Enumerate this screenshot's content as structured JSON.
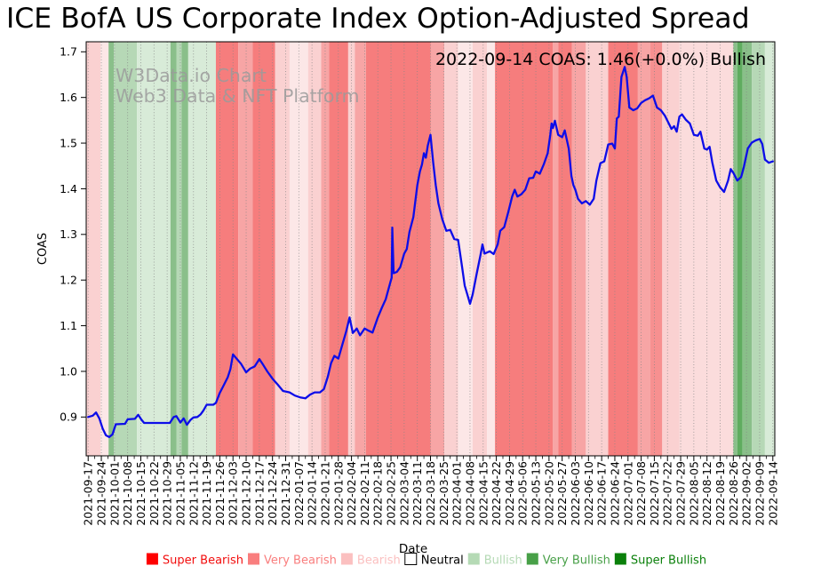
{
  "title": "ICE BofA US Corporate Index Option-Adjusted Spread",
  "annotation": "2022-09-14 COAS: 1.46(+0.0%) Bullish",
  "watermark": {
    "line1": "W3Data.io Chart",
    "line2": "Web3 Data & NFT Platform"
  },
  "chart_data": {
    "type": "line",
    "title": "ICE BofA US Corporate Index Option-Adjusted Spread",
    "xlabel": "Date",
    "ylabel": "COAS",
    "ylim": [
      0.815,
      1.722
    ],
    "xlim_weeks": [
      -0.15,
      52.15
    ],
    "grid": "vertical-dotted-weekly",
    "yticks": [
      "0.9",
      "1.0",
      "1.1",
      "1.2",
      "1.3",
      "1.4",
      "1.5",
      "1.6",
      "1.7"
    ],
    "ytick_values": [
      0.9,
      1.0,
      1.1,
      1.2,
      1.3,
      1.4,
      1.5,
      1.6,
      1.7
    ],
    "x_tick_labels": [
      "2021-09-17",
      "2021-09-24",
      "2021-10-01",
      "2021-10-08",
      "2021-10-15",
      "2021-10-22",
      "2021-10-29",
      "2021-11-05",
      "2021-11-12",
      "2021-11-19",
      "2021-11-26",
      "2021-12-03",
      "2021-12-10",
      "2021-12-17",
      "2021-12-24",
      "2021-12-31",
      "2022-01-07",
      "2022-01-14",
      "2022-01-21",
      "2022-01-28",
      "2022-02-04",
      "2022-02-11",
      "2022-02-18",
      "2022-02-25",
      "2022-03-04",
      "2022-03-11",
      "2022-03-18",
      "2022-03-25",
      "2022-04-01",
      "2022-04-08",
      "2022-04-15",
      "2022-04-22",
      "2022-04-29",
      "2022-05-06",
      "2022-05-13",
      "2022-05-20",
      "2022-05-27",
      "2022-06-03",
      "2022-06-10",
      "2022-06-17",
      "2022-06-24",
      "2022-07-01",
      "2022-07-08",
      "2022-07-15",
      "2022-07-22",
      "2022-07-29",
      "2022-08-05",
      "2022-08-12",
      "2022-08-19",
      "2022-08-26",
      "2022-09-02",
      "2022-09-09",
      "2022-09-14"
    ],
    "series": [
      {
        "name": "COAS",
        "color": "#0d0de8",
        "x": [
          0,
          0.35,
          0.6,
          0.85,
          1.1,
          1.35,
          1.6,
          1.85,
          2.1,
          2.8,
          3.0,
          3.55,
          3.8,
          4.05,
          4.25,
          6.2,
          6.5,
          6.7,
          7.0,
          7.25,
          7.5,
          7.75,
          8.0,
          8.3,
          8.55,
          8.75,
          9.0,
          9.5,
          9.7,
          10.0,
          10.3,
          10.6,
          10.8,
          11.0,
          11.3,
          11.6,
          12.0,
          12.3,
          12.65,
          13.0,
          13.3,
          13.6,
          14.0,
          14.4,
          14.8,
          15.3,
          15.7,
          16.1,
          16.5,
          16.85,
          17.2,
          17.6,
          17.9,
          18.2,
          18.45,
          18.7,
          19.0,
          19.3,
          19.6,
          19.85,
          20.1,
          20.4,
          20.65,
          21.0,
          21.3,
          21.6,
          22.0,
          22.3,
          22.6,
          22.95,
          23.05,
          23.1,
          23.2,
          23.45,
          23.7,
          24.0,
          24.2,
          24.4,
          24.7,
          25.0,
          25.2,
          25.35,
          25.5,
          25.65,
          25.8,
          26.0,
          26.2,
          26.4,
          26.6,
          26.9,
          27.2,
          27.5,
          27.8,
          28.1,
          28.4,
          28.6,
          28.8,
          29.0,
          29.2,
          29.5,
          29.8,
          29.95,
          30.1,
          30.5,
          30.8,
          31.1,
          31.3,
          31.6,
          31.9,
          32.2,
          32.4,
          32.6,
          32.9,
          33.2,
          33.5,
          33.8,
          34.0,
          34.3,
          34.6,
          34.9,
          35.1,
          35.2,
          35.3,
          35.45,
          35.7,
          36.0,
          36.2,
          36.5,
          36.7,
          36.85,
          37.0,
          37.2,
          37.5,
          37.8,
          38.1,
          38.4,
          38.6,
          38.9,
          39.2,
          39.5,
          39.8,
          40.0,
          40.15,
          40.3,
          40.5,
          40.65,
          40.75,
          40.9,
          41.1,
          41.4,
          41.7,
          42.0,
          42.3,
          42.6,
          42.9,
          43.2,
          43.5,
          43.8,
          44.1,
          44.3,
          44.5,
          44.7,
          44.9,
          45.1,
          45.4,
          45.7,
          46.0,
          46.3,
          46.5,
          46.8,
          47.0,
          47.2,
          47.4,
          47.7,
          48.0,
          48.3,
          48.6,
          48.8,
          49.0,
          49.3,
          49.6,
          49.8,
          50.1,
          50.4,
          50.7,
          51.0,
          51.2,
          51.4,
          51.7,
          52.0
        ],
        "y": [
          0.9,
          0.903,
          0.91,
          0.897,
          0.875,
          0.86,
          0.856,
          0.862,
          0.884,
          0.885,
          0.895,
          0.896,
          0.905,
          0.894,
          0.887,
          0.887,
          0.9,
          0.902,
          0.888,
          0.897,
          0.883,
          0.893,
          0.899,
          0.9,
          0.906,
          0.914,
          0.927,
          0.927,
          0.931,
          0.953,
          0.97,
          0.987,
          1.005,
          1.037,
          1.027,
          1.017,
          0.998,
          1.006,
          1.011,
          1.027,
          1.014,
          1.0,
          0.984,
          0.971,
          0.957,
          0.954,
          0.947,
          0.943,
          0.941,
          0.949,
          0.954,
          0.954,
          0.961,
          0.988,
          1.018,
          1.034,
          1.028,
          1.058,
          1.088,
          1.118,
          1.084,
          1.094,
          1.079,
          1.094,
          1.089,
          1.085,
          1.118,
          1.139,
          1.158,
          1.195,
          1.205,
          1.315,
          1.215,
          1.218,
          1.228,
          1.258,
          1.268,
          1.305,
          1.338,
          1.408,
          1.438,
          1.453,
          1.478,
          1.468,
          1.495,
          1.518,
          1.458,
          1.408,
          1.368,
          1.333,
          1.308,
          1.31,
          1.29,
          1.288,
          1.228,
          1.188,
          1.168,
          1.148,
          1.168,
          1.213,
          1.255,
          1.278,
          1.258,
          1.263,
          1.257,
          1.278,
          1.308,
          1.316,
          1.348,
          1.383,
          1.398,
          1.383,
          1.388,
          1.398,
          1.423,
          1.424,
          1.438,
          1.433,
          1.453,
          1.478,
          1.518,
          1.543,
          1.533,
          1.549,
          1.518,
          1.513,
          1.528,
          1.488,
          1.428,
          1.408,
          1.398,
          1.378,
          1.368,
          1.373,
          1.365,
          1.378,
          1.418,
          1.456,
          1.46,
          1.497,
          1.499,
          1.488,
          1.554,
          1.558,
          1.645,
          1.658,
          1.667,
          1.645,
          1.578,
          1.572,
          1.576,
          1.588,
          1.594,
          1.598,
          1.604,
          1.578,
          1.572,
          1.56,
          1.543,
          1.531,
          1.537,
          1.525,
          1.558,
          1.563,
          1.551,
          1.543,
          1.518,
          1.516,
          1.525,
          1.488,
          1.486,
          1.492,
          1.458,
          1.418,
          1.403,
          1.393,
          1.418,
          1.443,
          1.435,
          1.418,
          1.426,
          1.448,
          1.488,
          1.501,
          1.506,
          1.509,
          1.498,
          1.464,
          1.457,
          1.46
        ]
      }
    ],
    "band_colors": {
      "salmon": "#f67d7d",
      "salmon_light": "#f79090",
      "med_pink": "#f7a5a5",
      "light_pink": "#fad1d1",
      "pale_pink": "#fce7e7",
      "pale_pink2": "#fbdcdc",
      "pale_green": "#d8ebd8",
      "light_green": "#b6d8b6",
      "med_green": "#8abf8a",
      "dark_green": "#5fac5f"
    },
    "bands": [
      {
        "from": -0.15,
        "to": 0.95,
        "c": "light_pink"
      },
      {
        "from": 0.95,
        "to": 1.55,
        "c": "pale_pink"
      },
      {
        "from": 1.55,
        "to": 1.95,
        "c": "med_green"
      },
      {
        "from": 1.95,
        "to": 3.7,
        "c": "light_green"
      },
      {
        "from": 3.7,
        "to": 6.25,
        "c": "pale_green"
      },
      {
        "from": 6.25,
        "to": 6.7,
        "c": "med_green"
      },
      {
        "from": 6.7,
        "to": 7.1,
        "c": "light_green"
      },
      {
        "from": 7.1,
        "to": 7.6,
        "c": "med_green"
      },
      {
        "from": 7.6,
        "to": 9.7,
        "c": "pale_green"
      },
      {
        "from": 9.7,
        "to": 11.4,
        "c": "salmon"
      },
      {
        "from": 11.4,
        "to": 12.5,
        "c": "med_pink"
      },
      {
        "from": 12.5,
        "to": 14.2,
        "c": "salmon"
      },
      {
        "from": 14.2,
        "to": 15.3,
        "c": "light_pink"
      },
      {
        "from": 15.3,
        "to": 16.7,
        "c": "pale_pink"
      },
      {
        "from": 16.7,
        "to": 17.7,
        "c": "light_pink"
      },
      {
        "from": 17.7,
        "to": 18.3,
        "c": "med_pink"
      },
      {
        "from": 18.3,
        "to": 19.75,
        "c": "salmon"
      },
      {
        "from": 19.75,
        "to": 20.25,
        "c": "light_pink"
      },
      {
        "from": 20.25,
        "to": 21.1,
        "c": "med_pink"
      },
      {
        "from": 21.1,
        "to": 26.0,
        "c": "salmon"
      },
      {
        "from": 26.0,
        "to": 27.05,
        "c": "med_pink"
      },
      {
        "from": 27.05,
        "to": 28.1,
        "c": "light_pink"
      },
      {
        "from": 28.1,
        "to": 29.2,
        "c": "pale_pink"
      },
      {
        "from": 29.2,
        "to": 30.3,
        "c": "light_pink"
      },
      {
        "from": 30.3,
        "to": 30.9,
        "c": "pale_pink"
      },
      {
        "from": 30.9,
        "to": 35.3,
        "c": "salmon"
      },
      {
        "from": 35.3,
        "to": 35.7,
        "c": "med_pink"
      },
      {
        "from": 35.7,
        "to": 36.75,
        "c": "salmon"
      },
      {
        "from": 36.75,
        "to": 37.8,
        "c": "med_pink"
      },
      {
        "from": 37.8,
        "to": 39.5,
        "c": "light_pink"
      },
      {
        "from": 39.5,
        "to": 41.75,
        "c": "salmon"
      },
      {
        "from": 41.75,
        "to": 42.7,
        "c": "med_pink"
      },
      {
        "from": 42.7,
        "to": 43.6,
        "c": "salmon_light"
      },
      {
        "from": 43.6,
        "to": 44.9,
        "c": "light_pink"
      },
      {
        "from": 44.9,
        "to": 49.0,
        "c": "pale_pink2"
      },
      {
        "from": 49.0,
        "to": 49.3,
        "c": "med_green"
      },
      {
        "from": 49.3,
        "to": 49.7,
        "c": "dark_green"
      },
      {
        "from": 49.7,
        "to": 50.4,
        "c": "med_green"
      },
      {
        "from": 50.4,
        "to": 51.4,
        "c": "light_green"
      },
      {
        "from": 51.4,
        "to": 52.15,
        "c": "pale_green"
      }
    ],
    "legend": {
      "position": "bottom-center",
      "items": [
        {
          "label": "Super Bearish",
          "swatch": "#fe0000",
          "text_color": "#f20d0d"
        },
        {
          "label": "Very Bearish",
          "swatch": "#f97e7e",
          "text_color": "#f97e7e"
        },
        {
          "label": "Bearish",
          "swatch": "#fbc0c0",
          "text_color": "#fbc0c0"
        },
        {
          "label": "Neutral",
          "swatch": "#ffffff",
          "text_color": "#000000",
          "border": "#000000"
        },
        {
          "label": "Bullish",
          "swatch": "#b5dab5",
          "text_color": "#b5dab5"
        },
        {
          "label": "Very Bullish",
          "swatch": "#48a048",
          "text_color": "#48a048"
        },
        {
          "label": "Super Bullish",
          "swatch": "#0b800b",
          "text_color": "#0b800b"
        }
      ]
    }
  }
}
